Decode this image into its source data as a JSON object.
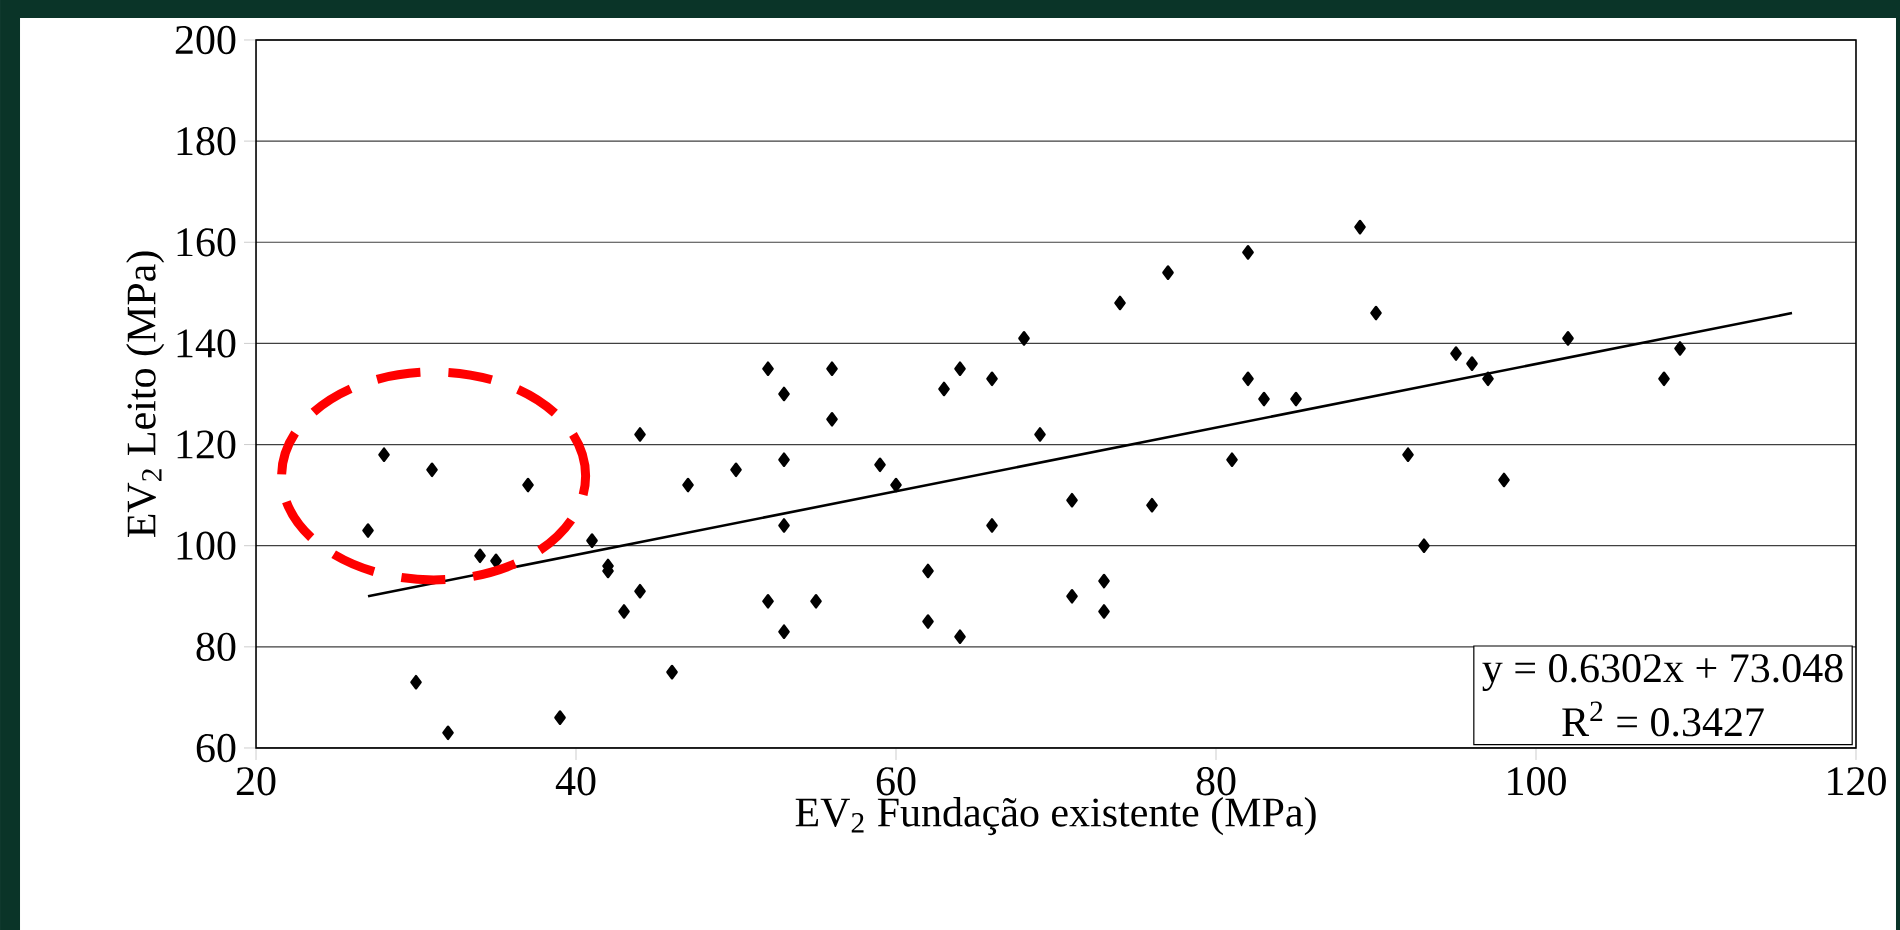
{
  "chart_data": {
    "type": "scatter",
    "xlabel": "EV$_{2}$ Fundação existente (MPa)",
    "ylabel": "EV$_{2}$ Leito (MPa)",
    "xlim": [
      20,
      120
    ],
    "ylim": [
      60,
      200
    ],
    "xticks": [
      20,
      40,
      60,
      80,
      100,
      120
    ],
    "yticks": [
      60,
      80,
      100,
      120,
      140,
      160,
      180,
      200
    ],
    "grid": "y",
    "marker": "diamond",
    "series": [
      {
        "color": "#000000",
        "x": [
          27,
          28,
          30,
          31,
          32,
          34,
          35,
          37,
          39,
          41,
          42,
          42,
          43,
          44,
          44,
          46,
          47,
          50,
          52,
          52,
          53,
          53,
          53,
          53,
          55,
          56,
          56,
          59,
          60,
          62,
          62,
          63,
          64,
          64,
          66,
          66,
          68,
          69,
          71,
          71,
          73,
          73,
          74,
          76,
          77,
          81,
          82,
          82,
          83,
          85,
          89,
          90,
          92,
          93,
          95,
          96,
          97,
          98,
          102,
          108,
          109
        ],
        "values": [
          103,
          118,
          73,
          115,
          63,
          98,
          97,
          112,
          66,
          101,
          96,
          95,
          87,
          91,
          122,
          75,
          112,
          115,
          135,
          89,
          130,
          117,
          104,
          83,
          89,
          135,
          125,
          116,
          112,
          95,
          85,
          131,
          135,
          82,
          133,
          104,
          141,
          122,
          109,
          90,
          93,
          87,
          148,
          108,
          154,
          117,
          158,
          133,
          129,
          129,
          163,
          146,
          118,
          100,
          138,
          136,
          133,
          113,
          141,
          133,
          139
        ]
      },
      {
        "type": "line",
        "color": "#000000",
        "marker": "none",
        "x": [
          27,
          116
        ],
        "values": [
          90,
          146
        ]
      }
    ],
    "annotations": [
      "y = 0.6302x + 73.048",
      "R$^{2}$ = 0.3427"
    ]
  }
}
